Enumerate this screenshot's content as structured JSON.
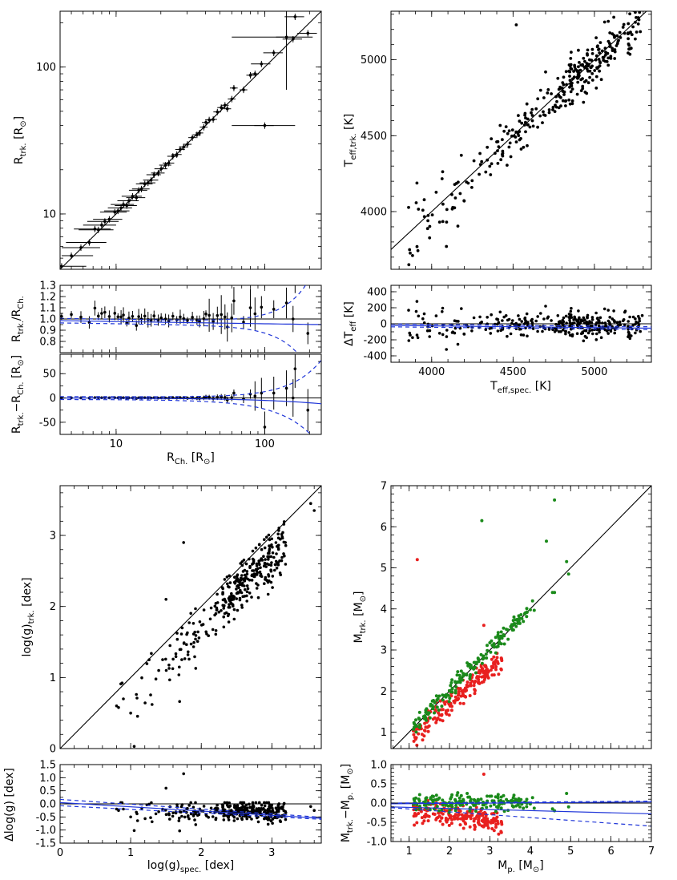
{
  "colors": {
    "black": "#000000",
    "blue": "#1f35d8",
    "red": "#e8201f",
    "green": "#1a8a1a"
  },
  "chart_data": [
    {
      "id": "radius",
      "type": "scatter",
      "xscale": "log",
      "yscale": "log",
      "xlim": [
        4.2,
        240
      ],
      "ylim": [
        4.2,
        240
      ],
      "xlabel": "R_Ch. [R_⊙]",
      "ylabel": "R_trk. [R_⊙]",
      "xticks": [
        10,
        100
      ],
      "yticks": [
        10,
        100
      ],
      "one_to_one": true,
      "points": [
        [
          4.3,
          4.4
        ],
        [
          5.0,
          5.2
        ],
        [
          5.8,
          5.9
        ],
        [
          6.6,
          6.4
        ],
        [
          7.2,
          7.9
        ],
        [
          7.6,
          7.8
        ],
        [
          8.0,
          8.4
        ],
        [
          8.4,
          8.9
        ],
        [
          9.0,
          9.2
        ],
        [
          9.8,
          10.3
        ],
        [
          10.3,
          10.5
        ],
        [
          10.8,
          11.0
        ],
        [
          11.2,
          11.6
        ],
        [
          11.8,
          11.4
        ],
        [
          12.2,
          12.3
        ],
        [
          12.9,
          13.2
        ],
        [
          13.7,
          12.9
        ],
        [
          14.2,
          14.5
        ],
        [
          14.8,
          14.8
        ],
        [
          15.6,
          16.0
        ],
        [
          16.4,
          16.3
        ],
        [
          17.2,
          17.0
        ],
        [
          18.0,
          18.5
        ],
        [
          19.2,
          19.0
        ],
        [
          20.1,
          20.3
        ],
        [
          21.5,
          21.5
        ],
        [
          22.6,
          22.2
        ],
        [
          24.1,
          24.7
        ],
        [
          25.6,
          25.4
        ],
        [
          27.0,
          27.5
        ],
        [
          28.5,
          28.6
        ],
        [
          30.2,
          29.8
        ],
        [
          32.6,
          33.1
        ],
        [
          35.0,
          34.6
        ],
        [
          36.4,
          35.6
        ],
        [
          38.9,
          39.0
        ],
        [
          40.2,
          42.0
        ],
        [
          42.3,
          43.7
        ],
        [
          45.0,
          44.0
        ],
        [
          48.0,
          49.5
        ],
        [
          51.0,
          53.0
        ],
        [
          54.0,
          55.0
        ],
        [
          56.0,
          52.0
        ],
        [
          60.0,
          60.6
        ],
        [
          62.0,
          72.0
        ],
        [
          72.0,
          70.0
        ],
        [
          80.0,
          88.0
        ],
        [
          86.0,
          90.0
        ],
        [
          95.0,
          105.0
        ],
        [
          100.0,
          40.0
        ],
        [
          115.0,
          125.0
        ],
        [
          140.0,
          160.0
        ],
        [
          155.0,
          155.0
        ],
        [
          160.0,
          220.0
        ],
        [
          195.0,
          170.0
        ]
      ],
      "residual_ratio": {
        "ylim": [
          0.7,
          1.3
        ],
        "yticks": [
          0.8,
          0.9,
          1.0,
          1.1,
          1.2,
          1.3
        ],
        "ylabel": "R_trk./R_Ch."
      },
      "residual_diff": {
        "ylim": [
          -75,
          90
        ],
        "yticks": [
          -50,
          0,
          50
        ],
        "ylabel": "R_trk.−R_Ch. [R_⊙]"
      }
    },
    {
      "id": "teff",
      "type": "scatter",
      "xlim": [
        3750,
        5350
      ],
      "ylim": [
        3620,
        5320
      ],
      "xticks": [
        4000,
        4500,
        5000
      ],
      "yticks": [
        4000,
        4500,
        5000
      ],
      "xlabel": "T_eff,spec. [K]",
      "ylabel": "T_eff,trk. [K]",
      "one_to_one": true,
      "n_points": 330,
      "trend": "slope≈1, scatter ±80 K, few outliers",
      "residual": {
        "ylim": [
          -480,
          480
        ],
        "yticks": [
          -400,
          -200,
          0,
          200,
          400
        ],
        "ylabel": "ΔT_eff [K]",
        "fit": [
          -20,
          -55
        ]
      }
    },
    {
      "id": "logg",
      "type": "scatter",
      "xlim": [
        0,
        3.7
      ],
      "ylim": [
        0,
        3.7
      ],
      "xticks": [
        0,
        1,
        2,
        3
      ],
      "yticks": [
        0,
        1,
        2,
        3
      ],
      "xlabel": "log(g)_spec. [dex]",
      "ylabel": "log(g)_trk. [dex]",
      "one_to_one": true,
      "n_points": 330,
      "residual": {
        "ylim": [
          -1.5,
          1.5
        ],
        "yticks": [
          -1.5,
          -1.0,
          -0.5,
          0.0,
          0.5,
          1.0,
          1.5
        ],
        "ylabel": "Δlog(g) [dex]",
        "fit": [
          0.05,
          -0.55
        ]
      }
    },
    {
      "id": "mass",
      "type": "scatter",
      "xlim": [
        0.55,
        7
      ],
      "ylim": [
        0.6,
        7
      ],
      "xticks": [
        1,
        2,
        3,
        4,
        5,
        6,
        7
      ],
      "yticks": [
        1,
        2,
        3,
        4,
        5,
        6,
        7
      ],
      "xlabel": "M_p. [M_⊙]",
      "ylabel": "M_trk. [M_⊙]",
      "one_to_one": true,
      "series": [
        {
          "name": "red",
          "n_points": 190
        },
        {
          "name": "green",
          "n_points": 170
        }
      ],
      "residual": {
        "ylim": [
          -1.0,
          1.0
        ],
        "yticks": [
          -1.0,
          -0.5,
          0.0,
          0.5,
          1.0
        ],
        "ylabel": "M_trk.−M_p. [M_⊙]",
        "fit": [
          -0.05,
          -0.3
        ]
      }
    }
  ]
}
